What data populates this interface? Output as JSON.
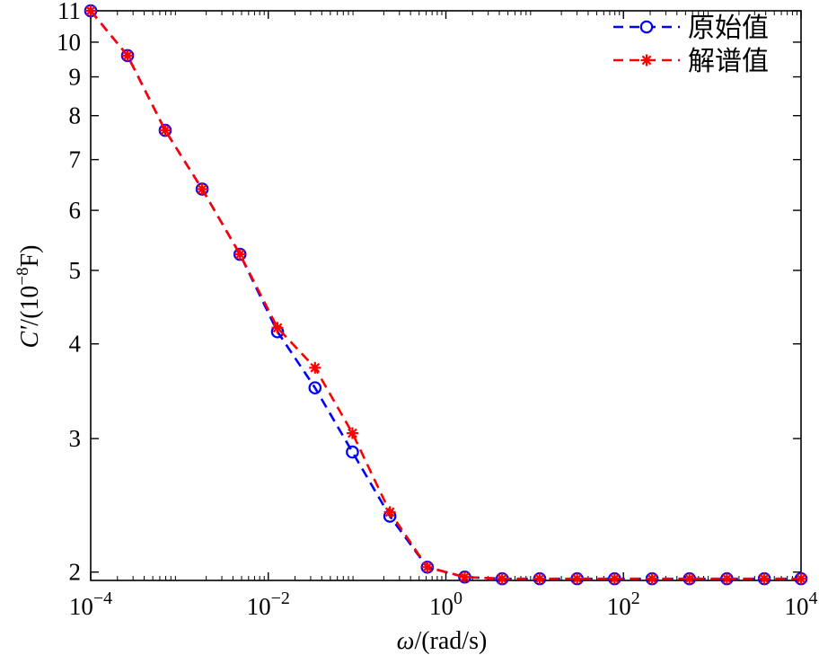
{
  "chart_data": {
    "type": "line",
    "title": "",
    "xlabel": {
      "symbol": "ω",
      "unit": "/(rad/s)"
    },
    "ylabel": {
      "symbol": "C′",
      "unit_prefix": "/(10",
      "unit_exp": "−8",
      "unit_suffix": "F)"
    },
    "xscale": "log",
    "yscale": "log",
    "xlim": [
      0.0001,
      10000
    ],
    "ylim": [
      1.95,
      11
    ],
    "grid": false,
    "legend_position": "top-right",
    "x_ticks": [
      {
        "value": 0.0001,
        "base": "10",
        "exp": "−4"
      },
      {
        "value": 0.01,
        "base": "10",
        "exp": "−2"
      },
      {
        "value": 1,
        "base": "10",
        "exp": "0"
      },
      {
        "value": 100,
        "base": "10",
        "exp": "2"
      },
      {
        "value": 10000,
        "base": "10",
        "exp": "4"
      }
    ],
    "y_ticks": [
      {
        "value": 2,
        "label": "2"
      },
      {
        "value": 3,
        "label": "3"
      },
      {
        "value": 4,
        "label": "4"
      },
      {
        "value": 5,
        "label": "5"
      },
      {
        "value": 6,
        "label": "6"
      },
      {
        "value": 7,
        "label": "7"
      },
      {
        "value": 8,
        "label": "8"
      },
      {
        "value": 9,
        "label": "9"
      },
      {
        "value": 10,
        "label": "10"
      },
      {
        "value": 11,
        "label": "11"
      }
    ],
    "x": [
      0.0001,
      0.00026,
      0.00069,
      0.0018,
      0.0048,
      0.0127,
      0.0336,
      0.0886,
      0.234,
      0.618,
      1.63,
      4.31,
      11.4,
      30.1,
      79.4,
      210,
      554,
      1462,
      3862,
      10000
    ],
    "series": [
      {
        "name": "原始值",
        "color": "#0000ff",
        "marker": "circle",
        "line": "dashed",
        "values": [
          11,
          9.6,
          7.65,
          6.4,
          5.25,
          4.15,
          3.5,
          2.88,
          2.37,
          2.03,
          1.97,
          1.96,
          1.96,
          1.96,
          1.96,
          1.96,
          1.96,
          1.96,
          1.96,
          1.96
        ]
      },
      {
        "name": "解谱值",
        "color": "#ff0000",
        "marker": "asterisk",
        "line": "dashed",
        "values": [
          11,
          9.6,
          7.65,
          6.4,
          5.25,
          4.2,
          3.72,
          3.05,
          2.4,
          2.03,
          1.97,
          1.96,
          1.96,
          1.96,
          1.96,
          1.96,
          1.96,
          1.96,
          1.96,
          1.96
        ]
      }
    ]
  }
}
